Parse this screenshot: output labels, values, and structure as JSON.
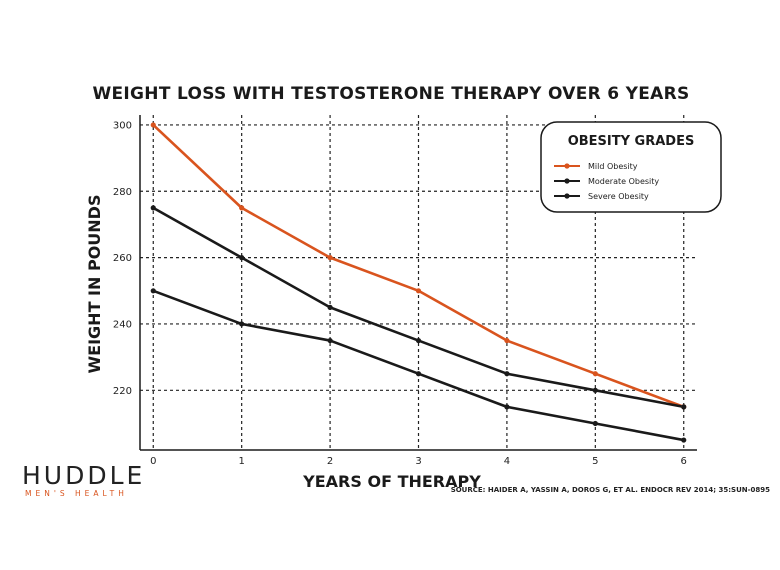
{
  "chart_data": {
    "type": "line",
    "title": "WEIGHT LOSS WITH TESTOSTERONE THERAPY OVER 6 YEARS",
    "xlabel": "YEARS OF THERAPY",
    "ylabel": "WEIGHT IN POUNDS",
    "x": [
      0,
      1,
      2,
      3,
      4,
      5,
      6
    ],
    "x_ticks": [
      "0",
      "1",
      "2",
      "3",
      "4",
      "5",
      "6"
    ],
    "y_ticks": [
      "220",
      "240",
      "260",
      "280",
      "300"
    ],
    "xlim": [
      -0.15,
      6.15
    ],
    "ylim": [
      202,
      303
    ],
    "grid": true,
    "legend": {
      "title": "OBESITY GRADES",
      "position": "top-right"
    },
    "series": [
      {
        "name": "Mild Obesity",
        "color": "#d9541e",
        "values": [
          300,
          275,
          260,
          250,
          235,
          225,
          215
        ]
      },
      {
        "name": "Moderate Obesity",
        "color": "#1a1a1a",
        "values": [
          275,
          260,
          245,
          235,
          225,
          220,
          215
        ]
      },
      {
        "name": "Severe Obesity",
        "color": "#1a1a1a",
        "values": [
          250,
          240,
          235,
          225,
          215,
          210,
          205
        ]
      }
    ]
  },
  "source": "SOURCE: HAIDER A, YASSIN A, DOROS G, ET AL. ENDOCR REV 2014; 35:SUN-0895",
  "brand": {
    "name": "HUDDLE",
    "tagline": "MEN'S HEALTH",
    "accent_color": "#d9541e"
  }
}
